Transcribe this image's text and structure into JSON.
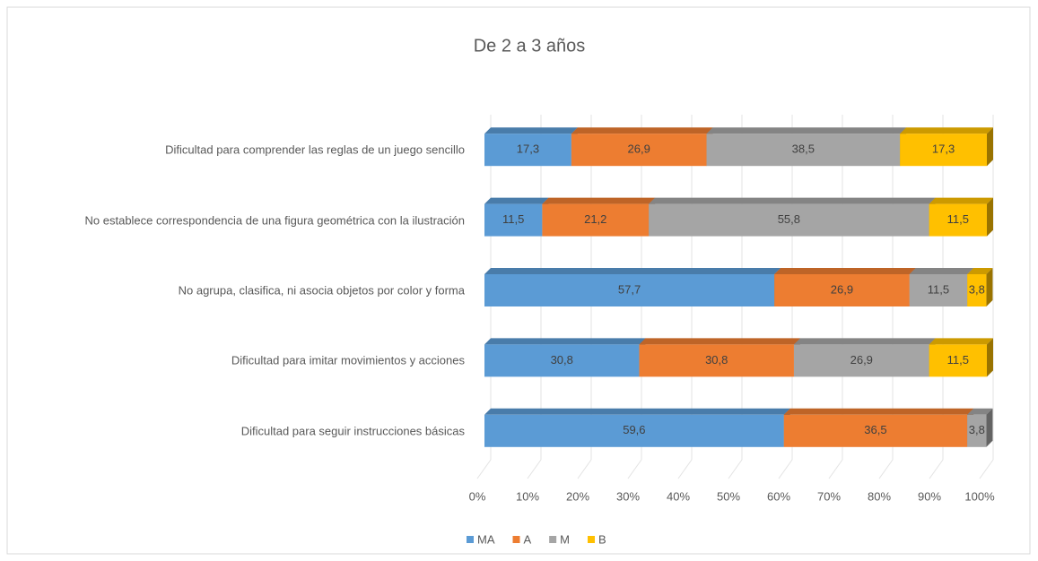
{
  "chart_data": {
    "type": "stacked-bar-horizontal-100",
    "title": "De 2 a 3 años",
    "categories": [
      "Dificultad para comprender las reglas de un juego sencillo",
      "No establece correspondencia de una figura geométrica con la ilustración",
      "No agrupa, clasifica, ni asocia objetos por color y forma",
      "Dificultad para imitar movimientos y acciones",
      "Dificultad para seguir instrucciones básicas"
    ],
    "series": [
      {
        "name": "MA",
        "color": "#5b9bd5",
        "values": [
          17.3,
          11.5,
          57.7,
          30.8,
          59.6
        ],
        "value_labels": [
          "17,3",
          "11,5",
          "57,7",
          "30,8",
          "59,6"
        ]
      },
      {
        "name": "A",
        "color": "#ed7d31",
        "values": [
          26.9,
          21.2,
          26.9,
          30.8,
          36.5
        ],
        "value_labels": [
          "26,9",
          "21,2",
          "26,9",
          "30,8",
          "36,5"
        ]
      },
      {
        "name": "M",
        "color": "#a5a5a5",
        "values": [
          38.5,
          55.8,
          11.5,
          26.9,
          3.8
        ],
        "value_labels": [
          "38,5",
          "55,8",
          "11,5",
          "26,9",
          "3,8"
        ]
      },
      {
        "name": "B",
        "color": "#ffc000",
        "values": [
          17.3,
          11.5,
          3.8,
          11.5,
          null
        ],
        "value_labels": [
          "17,3",
          "11,5",
          "3,8",
          "11,5",
          null
        ]
      }
    ],
    "xlim": [
      0,
      100
    ],
    "xticks": [
      {
        "value": 0,
        "label": "0%"
      },
      {
        "value": 10,
        "label": "10%"
      },
      {
        "value": 20,
        "label": "20%"
      },
      {
        "value": 30,
        "label": "30%"
      },
      {
        "value": 40,
        "label": "40%"
      },
      {
        "value": 50,
        "label": "50%"
      },
      {
        "value": 60,
        "label": "60%"
      },
      {
        "value": 70,
        "label": "70%"
      },
      {
        "value": 80,
        "label": "80%"
      },
      {
        "value": 90,
        "label": "90%"
      },
      {
        "value": 100,
        "label": "100%"
      }
    ],
    "grid": true,
    "legend": "bottom"
  }
}
